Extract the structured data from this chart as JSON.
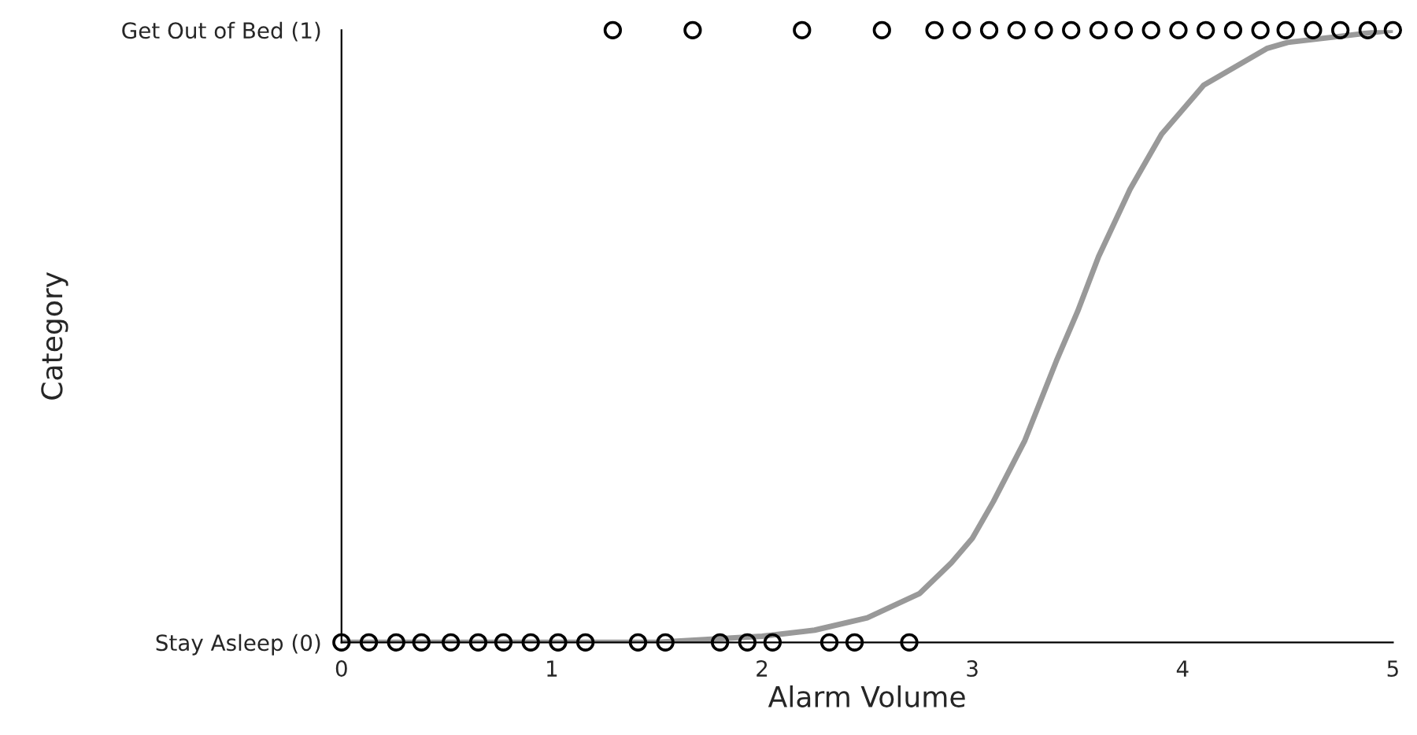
{
  "chart_data": {
    "type": "scatter",
    "xlabel": "Alarm Volume",
    "ylabel": "Category",
    "xlim": [
      0,
      5
    ],
    "xticks": [
      0,
      1,
      2,
      3,
      4,
      5
    ],
    "ylim": [
      0,
      1
    ],
    "yticks": [
      {
        "value": 0,
        "label": "Stay Asleep (0)"
      },
      {
        "value": 1,
        "label": "Get Out of Bed (1)"
      }
    ],
    "grid": false,
    "legend": false,
    "series": [
      {
        "marker": "circle",
        "color": "#000000",
        "x": [
          0,
          0.13,
          0.26,
          0.38,
          0.52,
          0.65,
          0.77,
          0.9,
          1.03,
          1.16,
          1.41,
          1.54,
          1.8,
          1.93,
          2.05,
          2.32,
          2.44,
          2.7
        ],
        "values": [
          0,
          0,
          0,
          0,
          0,
          0,
          0,
          0,
          0,
          0,
          0,
          0,
          0,
          0,
          0,
          0,
          0,
          0
        ]
      },
      {
        "marker": "circle",
        "color": "#000000",
        "x": [
          1.29,
          1.67,
          2.19,
          2.57,
          2.82,
          2.95,
          3.08,
          3.21,
          3.34,
          3.47,
          3.6,
          3.72,
          3.85,
          3.98,
          4.11,
          4.24,
          4.37,
          4.49,
          4.62,
          4.75,
          4.88,
          5.0
        ],
        "values": [
          1,
          1,
          1,
          1,
          1,
          1,
          1,
          1,
          1,
          1,
          1,
          1,
          1,
          1,
          1,
          1,
          1,
          1,
          1,
          1,
          1,
          1
        ]
      },
      {
        "type": "line",
        "marker": "none",
        "line_style": "solid",
        "color": "#999999",
        "x": [
          0,
          0.5,
          1,
          1.5,
          2,
          2.25,
          2.5,
          2.75,
          2.9,
          3,
          3.1,
          3.25,
          3.4,
          3.5,
          3.6,
          3.75,
          3.9,
          4,
          4.1,
          4.25,
          4.4,
          4.5,
          4.75,
          5
        ],
        "values": [
          0,
          0,
          0,
          0,
          0.01,
          0.02,
          0.04,
          0.08,
          0.13,
          0.17,
          0.23,
          0.33,
          0.46,
          0.54,
          0.63,
          0.74,
          0.83,
          0.87,
          0.91,
          0.94,
          0.97,
          0.98,
          0.99,
          1.0
        ]
      }
    ]
  }
}
